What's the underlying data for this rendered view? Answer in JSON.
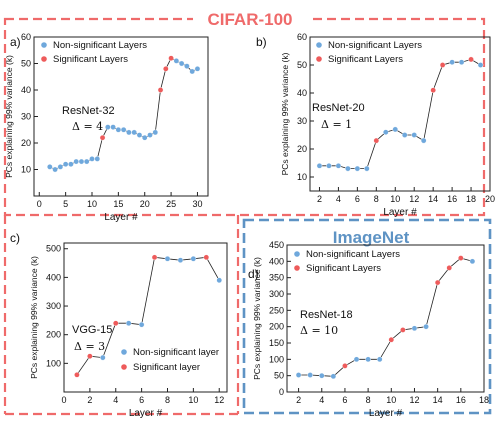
{
  "groups": [
    {
      "label": "CIFAR-100",
      "color": "#ef6a6a"
    },
    {
      "label": "ImageNet",
      "color": "#5e93c4"
    }
  ],
  "colors": {
    "non_significant": "#6fa8dc",
    "significant": "#ee5b5b",
    "line": "#222222"
  },
  "chart_data": [
    {
      "type": "scatter",
      "panel_label": "a)",
      "model": "ResNet-32",
      "delta": "Δ = 4",
      "xlabel": "Layer #",
      "ylabel": "PCs explaining 99% variance (k)",
      "xlim": [
        -1,
        32
      ],
      "ylim": [
        0,
        60
      ],
      "xticks": [
        0,
        5,
        10,
        15,
        20,
        25,
        30
      ],
      "yticks": [
        10,
        20,
        30,
        40,
        50,
        60
      ],
      "legend": {
        "position": "top-left",
        "items": [
          "Non-significant Layers",
          "Significant Layers"
        ]
      },
      "x": [
        2,
        3,
        4,
        5,
        6,
        7,
        8,
        9,
        10,
        11,
        12,
        13,
        14,
        15,
        16,
        17,
        18,
        19,
        20,
        21,
        22,
        23,
        24,
        25,
        26,
        27,
        28,
        29,
        30
      ],
      "y": [
        11,
        10,
        11,
        12,
        12,
        13,
        13,
        13,
        14,
        14,
        22,
        26,
        26,
        25,
        25,
        24,
        24,
        23,
        22,
        23,
        24,
        40,
        48,
        52,
        51,
        50,
        49,
        47,
        48
      ],
      "significant": [
        0,
        0,
        0,
        0,
        0,
        0,
        0,
        0,
        0,
        0,
        1,
        0,
        0,
        0,
        0,
        0,
        0,
        0,
        0,
        0,
        0,
        1,
        1,
        1,
        0,
        0,
        0,
        0,
        0
      ]
    },
    {
      "type": "scatter",
      "panel_label": "b)",
      "model": "ResNet-20",
      "delta": "Δ = 1",
      "xlabel": "Layer #",
      "ylabel": "PCs explaining 99% variance (k)",
      "xlim": [
        1,
        20
      ],
      "ylim": [
        5,
        60
      ],
      "xticks": [
        2,
        4,
        6,
        8,
        10,
        12,
        14,
        16,
        18,
        20
      ],
      "yticks": [
        10,
        20,
        30,
        40,
        50,
        60
      ],
      "legend": {
        "position": "top-left",
        "items": [
          "Non-significant Layers",
          "Significant Layers"
        ]
      },
      "x": [
        2,
        3,
        4,
        5,
        6,
        7,
        8,
        9,
        10,
        11,
        12,
        13,
        14,
        15,
        16,
        17,
        18,
        19
      ],
      "y": [
        14,
        14,
        14,
        13,
        13,
        13,
        23,
        26,
        27,
        25,
        25,
        23,
        41,
        50,
        51,
        51,
        52,
        50
      ],
      "significant": [
        0,
        0,
        0,
        0,
        0,
        0,
        1,
        0,
        0,
        0,
        0,
        0,
        1,
        1,
        0,
        0,
        1,
        0
      ]
    },
    {
      "type": "scatter",
      "panel_label": "c)",
      "model": "VGG-15",
      "delta": "Δ = 3",
      "xlabel": "Layer #",
      "ylabel": "PCs explaining 99% variance (k)",
      "xlim": [
        0,
        12.6
      ],
      "ylim": [
        0,
        520
      ],
      "xticks": [
        0,
        2,
        4,
        6,
        8,
        10,
        12
      ],
      "yticks": [
        100,
        200,
        300,
        400,
        500
      ],
      "legend": {
        "position": "bottom-right",
        "items": [
          "Non-significant layer",
          "Significant layer"
        ]
      },
      "x": [
        1,
        2,
        3,
        4,
        5,
        6,
        7,
        8,
        9,
        10,
        11,
        12
      ],
      "y": [
        60,
        125,
        120,
        240,
        240,
        235,
        470,
        465,
        460,
        465,
        470,
        390
      ],
      "significant": [
        1,
        1,
        0,
        1,
        0,
        0,
        1,
        0,
        0,
        0,
        1,
        0
      ]
    },
    {
      "type": "scatter",
      "panel_label": "d)",
      "model": "ResNet-18",
      "delta": "Δ = 10",
      "xlabel": "Layer #",
      "ylabel": "PCs explaining 99% variance (k)",
      "xlim": [
        1,
        18
      ],
      "ylim": [
        0,
        450
      ],
      "xticks": [
        2,
        4,
        6,
        8,
        10,
        12,
        14,
        16,
        18
      ],
      "yticks": [
        0,
        50,
        100,
        150,
        200,
        250,
        300,
        350,
        400,
        450
      ],
      "legend": {
        "position": "top-left",
        "items": [
          "Non-significant Layers",
          "Significant Layers"
        ]
      },
      "x": [
        2,
        3,
        4,
        5,
        6,
        7,
        8,
        9,
        10,
        11,
        12,
        13,
        14,
        15,
        16,
        17
      ],
      "y": [
        52,
        52,
        50,
        48,
        80,
        100,
        100,
        100,
        160,
        190,
        195,
        200,
        335,
        380,
        410,
        400
      ],
      "significant": [
        0,
        0,
        0,
        0,
        1,
        0,
        0,
        0,
        1,
        1,
        0,
        0,
        1,
        1,
        1,
        0
      ]
    }
  ]
}
